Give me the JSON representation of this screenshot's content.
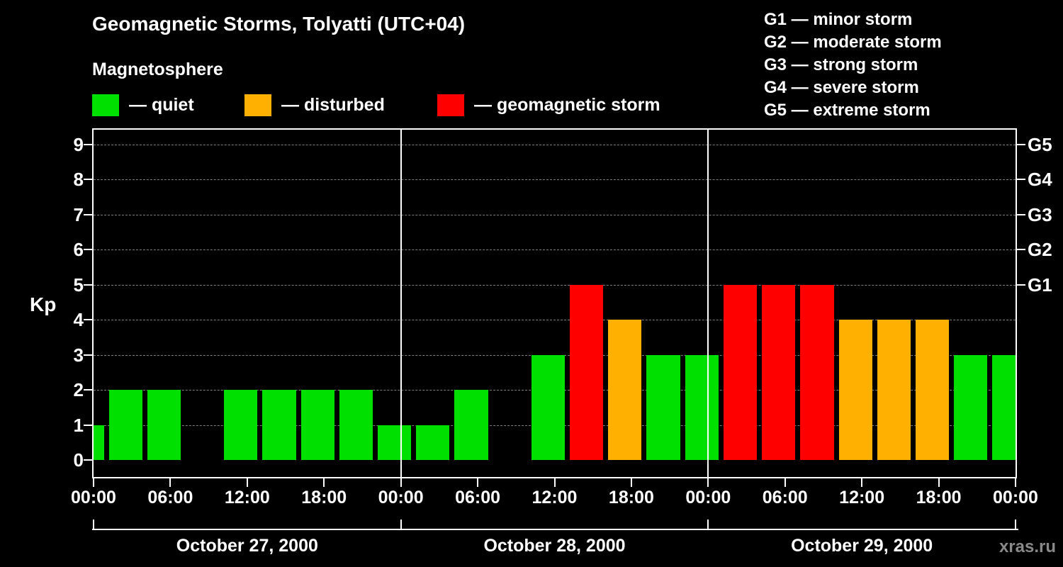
{
  "title": "Geomagnetic Storms, Tolyatti (UTC+04)",
  "subtitle": "Magnetosphere",
  "legend": {
    "items": [
      {
        "label": "— quiet",
        "color": "#00e000"
      },
      {
        "label": "— disturbed",
        "color": "#ffb000"
      },
      {
        "label": "— geomagnetic storm",
        "color": "#ff0000"
      }
    ]
  },
  "storm_scale": [
    "G1 — minor storm",
    "G2 — moderate storm",
    "G3 — strong storm",
    "G4 — severe storm",
    "G5 — extreme storm"
  ],
  "watermark": "xras.ru",
  "chart_data": {
    "type": "bar",
    "title": "Geomagnetic Storms, Tolyatti (UTC+04)",
    "ylabel": "Kp",
    "ylim": [
      0,
      9
    ],
    "timezone": "UTC+04",
    "grid": "dashed horizontal at each integer Kp",
    "colors": {
      "quiet": "#00e000",
      "disturbed": "#ffb000",
      "storm": "#ff0000"
    },
    "color_thresholds": {
      "quiet_max_kp": 3,
      "disturbed_kp": 4,
      "storm_min_kp": 5
    },
    "y_ticks": [
      0,
      1,
      2,
      3,
      4,
      5,
      6,
      7,
      8,
      9
    ],
    "right_ticks": [
      {
        "value": 5,
        "label": "G1"
      },
      {
        "value": 6,
        "label": "G2"
      },
      {
        "value": 7,
        "label": "G3"
      },
      {
        "value": 8,
        "label": "G4"
      },
      {
        "value": 9,
        "label": "G5"
      }
    ],
    "x_tick_labels": [
      "00:00",
      "06:00",
      "12:00",
      "18:00",
      "00:00",
      "06:00",
      "12:00",
      "18:00",
      "00:00",
      "06:00",
      "12:00",
      "18:00",
      "00:00"
    ],
    "days": [
      "October 27, 2000",
      "October 28, 2000",
      "October 29, 2000"
    ],
    "day_boundaries_hours": [
      0,
      24,
      48,
      72
    ],
    "bars": [
      {
        "start": 0,
        "end": 1,
        "kp": 1
      },
      {
        "start": 1,
        "end": 4,
        "kp": 2
      },
      {
        "start": 4,
        "end": 7,
        "kp": 2
      },
      {
        "start": 7,
        "end": 10,
        "kp": 0
      },
      {
        "start": 10,
        "end": 13,
        "kp": 2
      },
      {
        "start": 13,
        "end": 16,
        "kp": 2
      },
      {
        "start": 16,
        "end": 19,
        "kp": 2
      },
      {
        "start": 19,
        "end": 22,
        "kp": 2
      },
      {
        "start": 22,
        "end": 25,
        "kp": 1
      },
      {
        "start": 25,
        "end": 28,
        "kp": 1
      },
      {
        "start": 28,
        "end": 31,
        "kp": 2
      },
      {
        "start": 31,
        "end": 34,
        "kp": 0
      },
      {
        "start": 34,
        "end": 37,
        "kp": 3
      },
      {
        "start": 37,
        "end": 40,
        "kp": 5
      },
      {
        "start": 40,
        "end": 43,
        "kp": 4
      },
      {
        "start": 43,
        "end": 46,
        "kp": 3
      },
      {
        "start": 46,
        "end": 49,
        "kp": 3
      },
      {
        "start": 49,
        "end": 52,
        "kp": 5
      },
      {
        "start": 52,
        "end": 55,
        "kp": 5
      },
      {
        "start": 55,
        "end": 58,
        "kp": 5
      },
      {
        "start": 58,
        "end": 61,
        "kp": 4
      },
      {
        "start": 61,
        "end": 64,
        "kp": 4
      },
      {
        "start": 64,
        "end": 67,
        "kp": 4
      },
      {
        "start": 67,
        "end": 70,
        "kp": 3
      },
      {
        "start": 70,
        "end": 72,
        "kp": 3
      }
    ]
  }
}
